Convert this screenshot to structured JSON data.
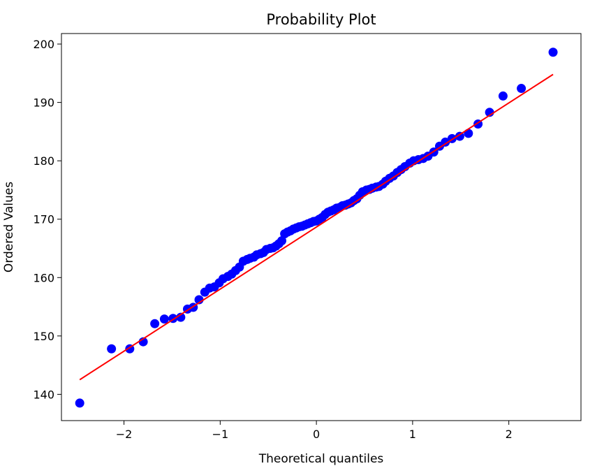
{
  "chart_data": {
    "type": "scatter",
    "title": "Probability Plot",
    "xlabel": "Theoretical quantiles",
    "ylabel": "Ordered Values",
    "xlim": [
      -2.65,
      2.75
    ],
    "ylim": [
      135.5,
      201.8
    ],
    "xticks": [
      -2,
      -1,
      0,
      1,
      2
    ],
    "xtick_labels": [
      "−2",
      "−1",
      "0",
      "1",
      "2"
    ],
    "yticks": [
      140,
      150,
      160,
      170,
      180,
      190,
      200
    ],
    "ytick_labels": [
      "140",
      "150",
      "160",
      "170",
      "180",
      "190",
      "200"
    ],
    "grid": false,
    "legend": false,
    "colors": {
      "points": "#0000ff",
      "fit_line": "#ff0000"
    },
    "series": [
      {
        "kind": "points",
        "x": [
          -2.46,
          -2.13,
          -1.94,
          -1.8,
          -1.68,
          -1.58,
          -1.49,
          -1.41,
          -1.34,
          -1.28,
          -1.22,
          -1.16,
          -1.11,
          -1.06,
          -1.01,
          -0.97,
          -0.92,
          -0.88,
          -0.84,
          -0.8,
          -0.76,
          -0.72,
          -0.69,
          -0.65,
          -0.62,
          -0.58,
          -0.55,
          -0.52,
          -0.48,
          -0.45,
          -0.42,
          -0.39,
          -0.36,
          -0.33,
          -0.3,
          -0.27,
          -0.24,
          -0.21,
          -0.18,
          -0.15,
          -0.12,
          -0.09,
          -0.06,
          -0.03,
          0.0,
          0.03,
          0.06,
          0.09,
          0.12,
          0.15,
          0.18,
          0.21,
          0.24,
          0.27,
          0.3,
          0.33,
          0.36,
          0.39,
          0.42,
          0.45,
          0.48,
          0.52,
          0.55,
          0.58,
          0.62,
          0.65,
          0.69,
          0.72,
          0.76,
          0.8,
          0.84,
          0.88,
          0.92,
          0.97,
          1.01,
          1.06,
          1.11,
          1.16,
          1.22,
          1.28,
          1.34,
          1.41,
          1.49,
          1.58,
          1.68,
          1.8,
          1.94,
          2.13,
          2.46
        ],
        "y": [
          138.5,
          147.8,
          147.8,
          149.0,
          152.1,
          152.9,
          153.0,
          153.2,
          154.6,
          154.9,
          156.2,
          157.5,
          158.2,
          158.4,
          159.1,
          159.8,
          160.2,
          160.6,
          161.2,
          161.8,
          162.8,
          163.1,
          163.3,
          163.5,
          163.9,
          164.1,
          164.3,
          164.8,
          165.0,
          165.1,
          165.4,
          165.8,
          166.3,
          167.5,
          167.8,
          168.0,
          168.3,
          168.5,
          168.7,
          168.8,
          169.0,
          169.2,
          169.4,
          169.6,
          169.7,
          170.0,
          170.3,
          170.8,
          171.2,
          171.4,
          171.6,
          171.9,
          172.0,
          172.3,
          172.4,
          172.6,
          172.8,
          173.2,
          173.5,
          174.1,
          174.7,
          175.0,
          175.1,
          175.3,
          175.5,
          175.6,
          176.0,
          176.5,
          177.0,
          177.4,
          178.0,
          178.5,
          179.0,
          179.6,
          180.0,
          180.2,
          180.4,
          180.8,
          181.5,
          182.5,
          183.2,
          183.8,
          184.2,
          184.7,
          186.3,
          188.3,
          191.1,
          192.4,
          198.6
        ]
      },
      {
        "kind": "fit_line",
        "x": [
          -2.46,
          2.46
        ],
        "y": [
          142.5,
          194.8
        ]
      }
    ]
  }
}
